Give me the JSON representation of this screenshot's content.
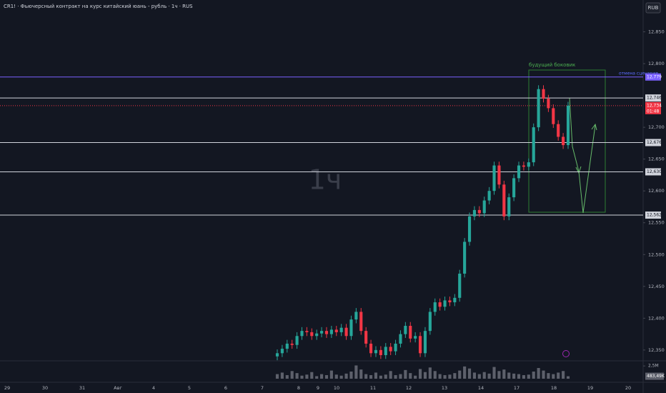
{
  "chart_data": {
    "type": "candlestick",
    "title": "CR1! · Фьючерсный контракт на курс китайский юань - рубль · 1ч · RUS",
    "currency": "RUB",
    "watermark": "1ч",
    "ylim": [
      12333,
      12900
    ],
    "yticks": [
      {
        "value": 12850,
        "label": "12,850"
      },
      {
        "value": 12800,
        "label": "12,800"
      },
      {
        "value": 12700,
        "label": "12,700"
      },
      {
        "value": 12650,
        "label": "12,650"
      },
      {
        "value": 12600,
        "label": "12,600"
      },
      {
        "value": 12550,
        "label": "12,550"
      },
      {
        "value": 12500,
        "label": "12,500"
      },
      {
        "value": 12450,
        "label": "12,450"
      },
      {
        "value": 12400,
        "label": "12,400"
      },
      {
        "value": 12350,
        "label": "12,350"
      }
    ],
    "categories": [
      "29",
      "30",
      "31",
      "Авг",
      "4",
      "5",
      "6",
      "7",
      "8",
      "9",
      "10",
      "11",
      "12",
      "13",
      "14",
      "17",
      "18",
      "19",
      "20"
    ],
    "open": [
      12340,
      12345,
      12352,
      12360,
      12358,
      12372,
      12380,
      12378,
      12372,
      12376,
      12380,
      12375,
      12382,
      12378,
      12385,
      12372,
      12398,
      12410,
      12380,
      12360,
      12345,
      12350,
      12342,
      12355,
      12348,
      12360,
      12375,
      12388,
      12368,
      12372,
      12345,
      12380,
      12410,
      12425,
      12418,
      12428,
      12425,
      12432,
      12470,
      12520,
      12560,
      12570,
      12565,
      12585,
      12600,
      12640,
      12610,
      12560,
      12590,
      12620,
      12640,
      12638,
      12645,
      12700,
      12760,
      12745,
      12730,
      12705,
      12685,
      12672
    ],
    "high": [
      12351,
      12358,
      12366,
      12366,
      12378,
      12386,
      12386,
      12384,
      12382,
      12386,
      12386,
      12388,
      12388,
      12391,
      12391,
      12404,
      12416,
      12416,
      12386,
      12366,
      12356,
      12356,
      12361,
      12361,
      12366,
      12381,
      12394,
      12394,
      12378,
      12378,
      12386,
      12416,
      12431,
      12431,
      12434,
      12434,
      12438,
      12476,
      12526,
      12566,
      12576,
      12576,
      12591,
      12606,
      12646,
      12646,
      12616,
      12596,
      12626,
      12646,
      12646,
      12651,
      12706,
      12766,
      12766,
      12751,
      12736,
      12711,
      12691,
      12740
    ],
    "low": [
      12334,
      12339,
      12346,
      12352,
      12352,
      12366,
      12372,
      12366,
      12366,
      12370,
      12369,
      12369,
      12372,
      12372,
      12366,
      12366,
      12392,
      12374,
      12354,
      12339,
      12339,
      12336,
      12336,
      12342,
      12342,
      12354,
      12369,
      12362,
      12362,
      12339,
      12339,
      12374,
      12404,
      12412,
      12412,
      12419,
      12419,
      12426,
      12464,
      12514,
      12554,
      12559,
      12559,
      12579,
      12594,
      12604,
      12554,
      12554,
      12584,
      12614,
      12632,
      12632,
      12639,
      12694,
      12739,
      12724,
      12699,
      12679,
      12666,
      12666
    ],
    "close": [
      12345,
      12352,
      12360,
      12358,
      12372,
      12380,
      12378,
      12372,
      12376,
      12380,
      12375,
      12382,
      12378,
      12385,
      12372,
      12398,
      12410,
      12380,
      12360,
      12345,
      12350,
      12342,
      12355,
      12348,
      12360,
      12375,
      12388,
      12368,
      12372,
      12345,
      12380,
      12410,
      12425,
      12418,
      12428,
      12425,
      12432,
      12470,
      12520,
      12560,
      12570,
      12565,
      12585,
      12600,
      12640,
      12610,
      12560,
      12590,
      12620,
      12640,
      12638,
      12645,
      12700,
      12760,
      12745,
      12730,
      12705,
      12685,
      12672,
      12734
    ],
    "volume": [
      900000,
      1200000,
      700000,
      1500000,
      1100000,
      600000,
      800000,
      1300000,
      500000,
      900000,
      700000,
      1600000,
      800000,
      600000,
      1000000,
      1400000,
      2600000,
      1800000,
      900000,
      700000,
      1200000,
      600000,
      800000,
      1500000,
      700000,
      900000,
      1700000,
      1100000,
      600000,
      1900000,
      1300000,
      2200000,
      1500000,
      900000,
      700000,
      800000,
      1100000,
      1600000,
      2400000,
      2000000,
      1200000,
      900000,
      1300000,
      1000000,
      2300000,
      1500000,
      1800000,
      1200000,
      1000000,
      900000,
      700000,
      800000,
      1400000,
      2100000,
      1600000,
      1100000,
      900000,
      1200000,
      1500000,
      483490
    ],
    "volume_ylim": [
      0,
      3500000
    ],
    "volume_tick": {
      "value": 2500000,
      "label": "2,5M"
    },
    "volume_last": {
      "value": 483490,
      "label": "483,49K"
    },
    "levels": [
      {
        "value": 12779,
        "label": "12,779",
        "color": "#7b61ff"
      },
      {
        "value": 12746,
        "label": "12,746",
        "color": "#d1d4dc"
      },
      {
        "value": 12676,
        "label": "12,676",
        "color": "#d1d4dc"
      },
      {
        "value": 12630,
        "label": "12,630",
        "color": "#d1d4dc"
      },
      {
        "value": 12562,
        "label": "12,562",
        "color": "#d1d4dc"
      }
    ],
    "last_price": {
      "value": 12734,
      "label": "12,734",
      "countdown": "01:48",
      "color": "#f23645"
    },
    "annotations": {
      "range_box": "будущий боковик",
      "cancel": "отмена сценария"
    },
    "up_color": "#26a69a",
    "down_color": "#f23645"
  }
}
